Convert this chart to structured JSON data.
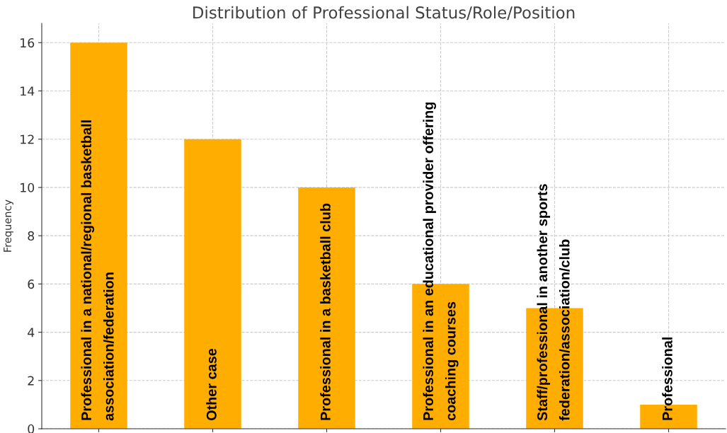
{
  "chart_data": {
    "type": "bar",
    "title": "Distribution of Professional Status/Role/Position",
    "ylabel": "Frequency",
    "categories": [
      "Professional in a national/regional basketball\nassociation/federation",
      "Other case",
      "Professional in a basketball club",
      "Professional in an educational provider offering\ncoaching courses",
      "Staff/professional in another sports\nfederation/association/club",
      "Professional"
    ],
    "values": [
      16,
      12,
      10,
      6,
      5,
      1
    ],
    "color": "#ffae00",
    "ylim": [
      0,
      16.8
    ],
    "yticks": [
      0,
      2,
      4,
      6,
      8,
      10,
      12,
      14,
      16
    ],
    "grid": true
  }
}
